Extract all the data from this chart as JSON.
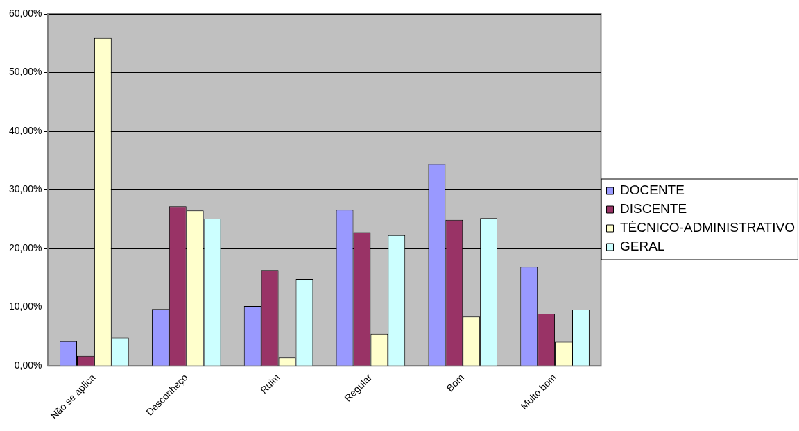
{
  "chart_data": {
    "type": "bar",
    "categories": [
      "Não se aplica",
      "Desconheço",
      "Ruim",
      "Regular",
      "Bom",
      "Muito bom"
    ],
    "series": [
      {
        "name": "DOCENTE",
        "color": "#9999ff",
        "values": [
          4.2,
          9.7,
          10.2,
          26.6,
          34.4,
          16.9
        ]
      },
      {
        "name": "DISCENTE",
        "color": "#993366",
        "values": [
          1.7,
          27.2,
          16.3,
          22.8,
          24.9,
          8.9
        ]
      },
      {
        "name": "TÉCNICO-ADMINISTRATIVO",
        "color": "#ffffcc",
        "values": [
          55.9,
          26.5,
          1.4,
          5.5,
          8.4,
          4.1
        ]
      },
      {
        "name": "GERAL",
        "color": "#ccffff",
        "values": [
          4.8,
          25.1,
          14.8,
          22.3,
          25.2,
          9.6
        ]
      }
    ],
    "ylim": [
      0,
      60
    ],
    "yticks": [
      {
        "value": 0,
        "label": "0,00%"
      },
      {
        "value": 10,
        "label": "10,00%"
      },
      {
        "value": 20,
        "label": "20,00%"
      },
      {
        "value": 30,
        "label": "30,00%"
      },
      {
        "value": 40,
        "label": "40,00%"
      },
      {
        "value": 50,
        "label": "50,00%"
      },
      {
        "value": 60,
        "label": "60,00%"
      }
    ],
    "grid": "y",
    "legend": "right"
  }
}
